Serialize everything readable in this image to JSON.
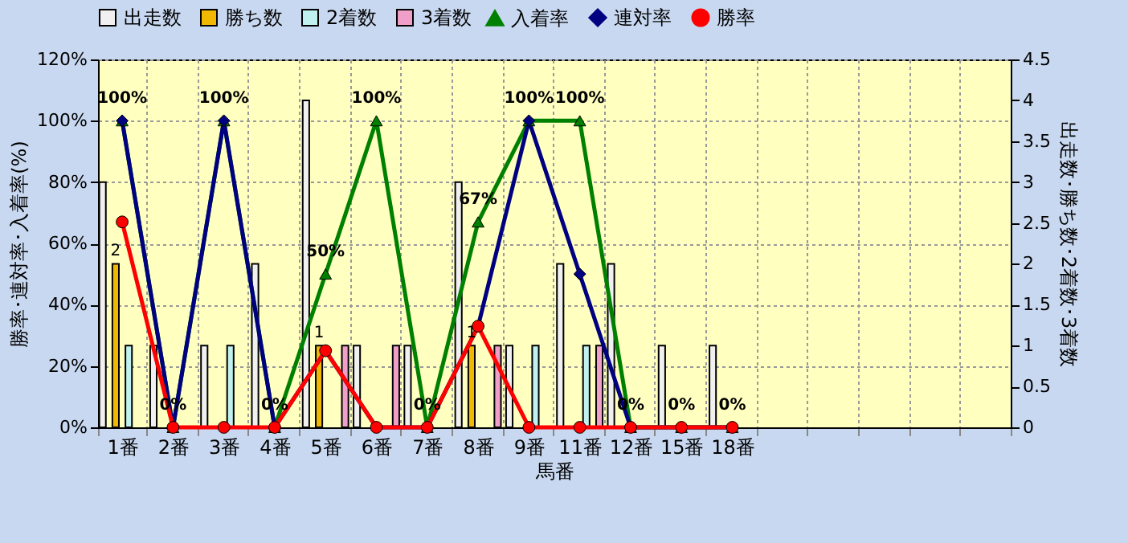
{
  "chart_data": {
    "type": "bar",
    "xlabel": "馬番",
    "ylabel": "勝率･連対率･入着率(%)",
    "y2label": "出走数･勝ち数･2着数･3着数",
    "categories": [
      "1番",
      "2番",
      "3番",
      "4番",
      "5番",
      "6番",
      "7番",
      "8番",
      "9番",
      "11番",
      "12番",
      "15番",
      "18番",
      null,
      null,
      null,
      null,
      null
    ],
    "series": [
      {
        "name": "出走数",
        "axis": "y2",
        "color": "#f0f0f0",
        "values": [
          3,
          1,
          1,
          2,
          4,
          1,
          1,
          3,
          1,
          2,
          2,
          1,
          1,
          null,
          null,
          null,
          null,
          null
        ]
      },
      {
        "name": "勝ち数",
        "axis": "y2",
        "color": "#f0b800",
        "values": [
          2,
          0,
          0,
          0,
          1,
          0,
          0,
          1,
          0,
          0,
          0,
          0,
          0,
          null,
          null,
          null,
          null,
          null
        ],
        "value_labels": [
          "2",
          null,
          null,
          null,
          "1",
          null,
          null,
          "1",
          null,
          null,
          null,
          null,
          null,
          null,
          null,
          null,
          null,
          null
        ]
      },
      {
        "name": "2着数",
        "axis": "y2",
        "color": "#c0f0f0",
        "values": [
          1,
          0,
          1,
          0,
          0,
          0,
          0,
          0,
          1,
          1,
          0,
          0,
          0,
          null,
          null,
          null,
          null,
          null
        ]
      },
      {
        "name": "3着数",
        "axis": "y2",
        "color": "#f0a0c8",
        "values": [
          0,
          0,
          0,
          0,
          1,
          1,
          0,
          1,
          0,
          1,
          0,
          0,
          0,
          null,
          null,
          null,
          null,
          null
        ]
      },
      {
        "name": "入着率",
        "type": "line",
        "color": "#008000",
        "marker": "triangle",
        "values": [
          100,
          0,
          100,
          0,
          50,
          100,
          0,
          67,
          100,
          100,
          0,
          0,
          0,
          null,
          null,
          null,
          null,
          null
        ],
        "value_labels": [
          "100%",
          "0%",
          "100%",
          "0%",
          "50%",
          "100%",
          "0%",
          "67%",
          "100%",
          "100%",
          "0%",
          "0%",
          "0%",
          null,
          null,
          null,
          null,
          null
        ]
      },
      {
        "name": "連対率",
        "type": "line",
        "color": "#000080",
        "marker": "diamond",
        "values": [
          100,
          0,
          100,
          0,
          25,
          0,
          0,
          33,
          100,
          50,
          0,
          0,
          0,
          null,
          null,
          null,
          null,
          null
        ]
      },
      {
        "name": "勝率",
        "type": "line",
        "color": "#ff0000",
        "marker": "circle",
        "values": [
          67,
          0,
          0,
          0,
          25,
          0,
          0,
          33,
          0,
          0,
          0,
          0,
          0,
          null,
          null,
          null,
          null,
          null
        ]
      }
    ],
    "ylim": [
      0,
      120
    ],
    "yticks": [
      {
        "value": 0,
        "label": "0%"
      },
      {
        "value": 20,
        "label": "20%"
      },
      {
        "value": 40,
        "label": "40%"
      },
      {
        "value": 60,
        "label": "60%"
      },
      {
        "value": 80,
        "label": "80%"
      },
      {
        "value": 100,
        "label": "100%"
      },
      {
        "value": 120,
        "label": "120%"
      }
    ],
    "y2lim": [
      0,
      4.5
    ],
    "y2ticks": [
      0,
      0.5,
      1,
      1.5,
      2,
      2.5,
      3,
      3.5,
      4,
      4.5
    ],
    "grid": true,
    "legend": "top"
  }
}
